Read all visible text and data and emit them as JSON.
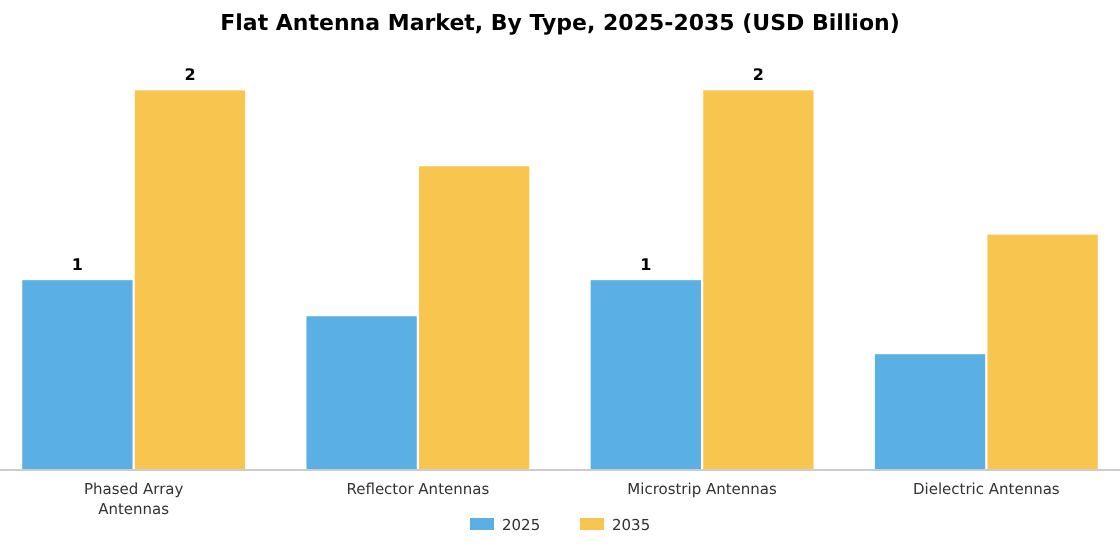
{
  "chart_data": {
    "type": "bar",
    "title": "Flat Antenna Market, By Type, 2025-2035 (USD Billion)",
    "categories": [
      "Phased Array Antennas",
      "Reflector Antennas",
      "Microstrip Antennas",
      "Dielectric Antennas"
    ],
    "series": [
      {
        "name": "2025",
        "color": "#5aafe4",
        "values": [
          1,
          0.81,
          1,
          0.61
        ],
        "value_labels": [
          "1",
          null,
          "1",
          null
        ]
      },
      {
        "name": "2035",
        "color": "#f8c54e",
        "values": [
          2,
          1.6,
          2,
          1.24
        ],
        "value_labels": [
          "2",
          null,
          "2",
          null
        ]
      }
    ],
    "legend": "bottom",
    "grid": false
  }
}
